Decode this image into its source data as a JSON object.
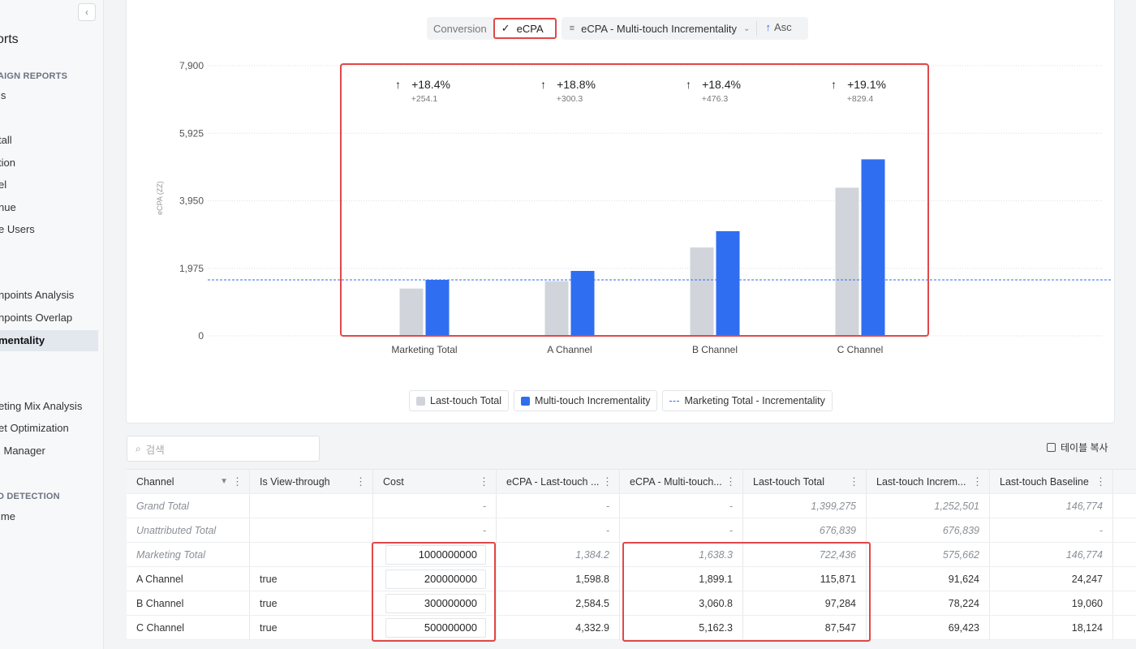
{
  "sidebar": {
    "title": "orts",
    "sections": [
      "AIGN REPORTS",
      "D DETECTION"
    ],
    "items": [
      "ls",
      "",
      "tall",
      "tion",
      "el",
      "nue",
      "e Users",
      "npoints Analysis",
      "npoints Overlap",
      "mentality",
      "eting Mix Analysis",
      "et Optimization",
      "l Manager",
      "ime"
    ]
  },
  "toolbar": {
    "conversion_label": "Conversion",
    "ecpa_label": "eCPA",
    "metric_label": "eCPA - Multi-touch Incrementality",
    "sort_label": "Asc"
  },
  "chart_data": {
    "type": "bar",
    "categories": [
      "Marketing Total",
      "A Channel",
      "B Channel",
      "C Channel"
    ],
    "series": [
      {
        "name": "Last-touch Total",
        "values": [
          1384.2,
          1598.8,
          2584.5,
          4332.9
        ],
        "color": "#d1d5db"
      },
      {
        "name": "Multi-touch Incrementality",
        "values": [
          1638.3,
          1899.1,
          3060.8,
          5162.3
        ],
        "color": "#2f6ef0"
      }
    ],
    "reference_line": {
      "name": "Marketing Total - Incrementality",
      "value": 1638.3,
      "color": "#2f6ef0"
    },
    "ylabel": "eCPA (ZZ)",
    "ylim": [
      0,
      7900
    ],
    "yticks": [
      "7,900",
      "5,925",
      "3,950",
      "1,975",
      "0"
    ],
    "ytick_values": [
      7900,
      5925,
      3950,
      1975,
      0
    ],
    "annotations": [
      {
        "pct": "+18.4%",
        "diff": "+254.1"
      },
      {
        "pct": "+18.8%",
        "diff": "+300.3"
      },
      {
        "pct": "+18.4%",
        "diff": "+476.3"
      },
      {
        "pct": "+19.1%",
        "diff": "+829.4"
      }
    ],
    "grid": true,
    "legend": "bottom"
  },
  "search": {
    "placeholder": "검색"
  },
  "copy_label": "테이블 복사",
  "table": {
    "headers": [
      "Channel",
      "Is View-through",
      "Cost",
      "eCPA - Last-touch ...",
      "eCPA - Multi-touch...",
      "Last-touch Total",
      "Last-touch Increm...",
      "Last-touch Baseline"
    ],
    "rows": [
      [
        "Grand Total",
        "",
        "-",
        "-",
        "-",
        "1,399,275",
        "1,252,501",
        "146,774"
      ],
      [
        "Unattributed Total",
        "",
        "-",
        "-",
        "-",
        "676,839",
        "676,839",
        "-"
      ],
      [
        "Marketing Total",
        "",
        "1000000000",
        "1,384.2",
        "1,638.3",
        "722,436",
        "575,662",
        "146,774"
      ],
      [
        "A Channel",
        "true",
        "200000000",
        "1,598.8",
        "1,899.1",
        "115,871",
        "91,624",
        "24,247"
      ],
      [
        "B Channel",
        "true",
        "300000000",
        "2,584.5",
        "3,060.8",
        "97,284",
        "78,224",
        "19,060"
      ],
      [
        "C Channel",
        "true",
        "500000000",
        "4,332.9",
        "5,162.3",
        "87,547",
        "69,423",
        "18,124"
      ]
    ]
  }
}
